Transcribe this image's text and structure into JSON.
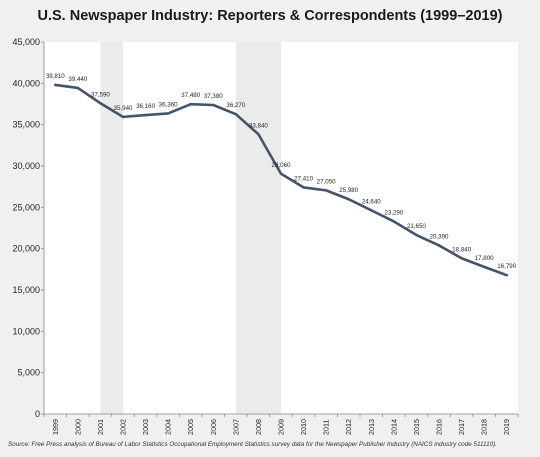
{
  "chart_data": {
    "type": "line",
    "title": "U.S. Newspaper Industry: Reporters & Correspondents (1999–2019)",
    "source": "Source: Free Press analysis of Bureau of Labor Statistics Occupational Employment Statistics survey data for the Newspaper Publisher Industry (NAICS industry code 511110).",
    "x": [
      "1999",
      "2000",
      "2001",
      "2002",
      "2003",
      "2004",
      "2005",
      "2006",
      "2007",
      "2008",
      "2009",
      "2010",
      "2011",
      "2012",
      "2013",
      "2014",
      "2015",
      "2016",
      "2017",
      "2018",
      "2019"
    ],
    "series": [
      {
        "values": [
          39810,
          39440,
          37590,
          35940,
          36160,
          36360,
          37480,
          37380,
          36270,
          33840,
          29060,
          27410,
          27050,
          25980,
          24640,
          23290,
          21650,
          20390,
          18840,
          17800,
          16790
        ],
        "labels": [
          "39,810",
          "39,440",
          "37,590",
          "35,940",
          "36,160",
          "36,360",
          "37,480",
          "37,380",
          "36,270",
          "33,840",
          "29,060",
          "27,410",
          "27,050",
          "25,980",
          "24,640",
          "23,290",
          "21,650",
          "20,390",
          "18,840",
          "17,800",
          "16,790"
        ]
      }
    ],
    "yticks": [
      {
        "value": 0,
        "label": "0"
      },
      {
        "value": 5000,
        "label": "5,000"
      },
      {
        "value": 10000,
        "label": "10,000"
      },
      {
        "value": 15000,
        "label": "15,000"
      },
      {
        "value": 20000,
        "label": "20,000"
      },
      {
        "value": 25000,
        "label": "25,000"
      },
      {
        "value": 30000,
        "label": "30,000"
      },
      {
        "value": 35000,
        "label": "35,000"
      },
      {
        "value": 40000,
        "label": "40,000"
      },
      {
        "value": 45000,
        "label": "45,000"
      }
    ],
    "ylim": [
      0,
      45000
    ],
    "shaded_periods": [
      [
        "2001",
        "2002"
      ],
      [
        "2007",
        "2009"
      ]
    ],
    "grid": false,
    "colors": {
      "line": "#44546a",
      "shade": "#ebebeb",
      "plot_background": "#ffffff",
      "outer_background": "#f0f0f0",
      "axis": "#888888",
      "text": "#262626"
    }
  }
}
